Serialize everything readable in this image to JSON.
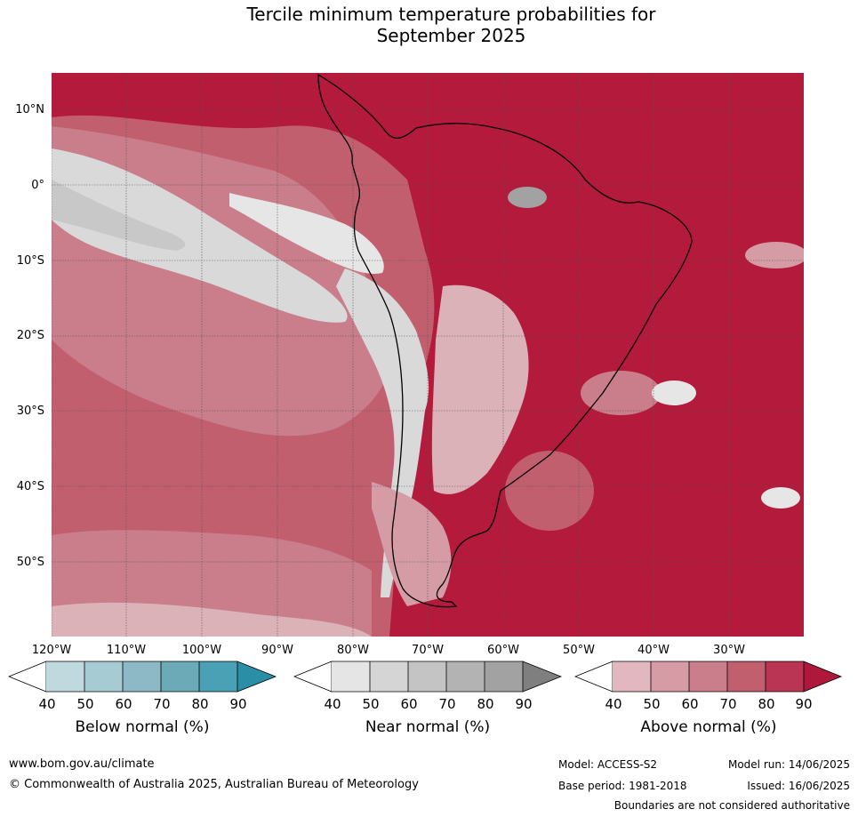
{
  "title_line1": "Tercile minimum temperature probabilities for",
  "title_line2": "September 2025",
  "map": {
    "lat_labels": [
      "10°N",
      "0°",
      "10°S",
      "20°S",
      "30°S",
      "40°S",
      "50°S"
    ],
    "lon_labels": [
      "120°W",
      "110°W",
      "100°W",
      "90°W",
      "80°W",
      "70°W",
      "60°W",
      "50°W",
      "40°W",
      "30°W"
    ],
    "base_color": "#b31a3c"
  },
  "colorbars": [
    {
      "title": "Below normal (%)",
      "ticks": [
        "40",
        "50",
        "60",
        "70",
        "80",
        "90"
      ],
      "colors": [
        "#ffffff",
        "#c0d9df",
        "#a7cbd3",
        "#8cb9c5",
        "#6daab8",
        "#4aa0b4",
        "#2a8ea6"
      ]
    },
    {
      "title": "Near normal (%)",
      "ticks": [
        "40",
        "50",
        "60",
        "70",
        "80",
        "90"
      ],
      "colors": [
        "#ffffff",
        "#e5e5e5",
        "#d5d5d5",
        "#c4c4c4",
        "#b3b3b3",
        "#a2a2a2",
        "#7f7f7f"
      ]
    },
    {
      "title": "Above normal (%)",
      "ticks": [
        "40",
        "50",
        "60",
        "70",
        "80",
        "90"
      ],
      "colors": [
        "#ffffff",
        "#e2b7bf",
        "#d59ca6",
        "#ca7d8a",
        "#c25f6f",
        "#b93553",
        "#b0183b"
      ]
    }
  ],
  "footer": {
    "url": "www.bom.gov.au/climate",
    "copyright": "© Commonwealth of Australia 2025, Australian Bureau of Meteorology",
    "model": "Model: ACCESS-S2",
    "model_run": "Model run: 14/06/2025",
    "base_period": "Base period: 1981-2018",
    "issued": "Issued: 16/06/2025",
    "disclaimer": "Boundaries are not considered authoritative"
  }
}
